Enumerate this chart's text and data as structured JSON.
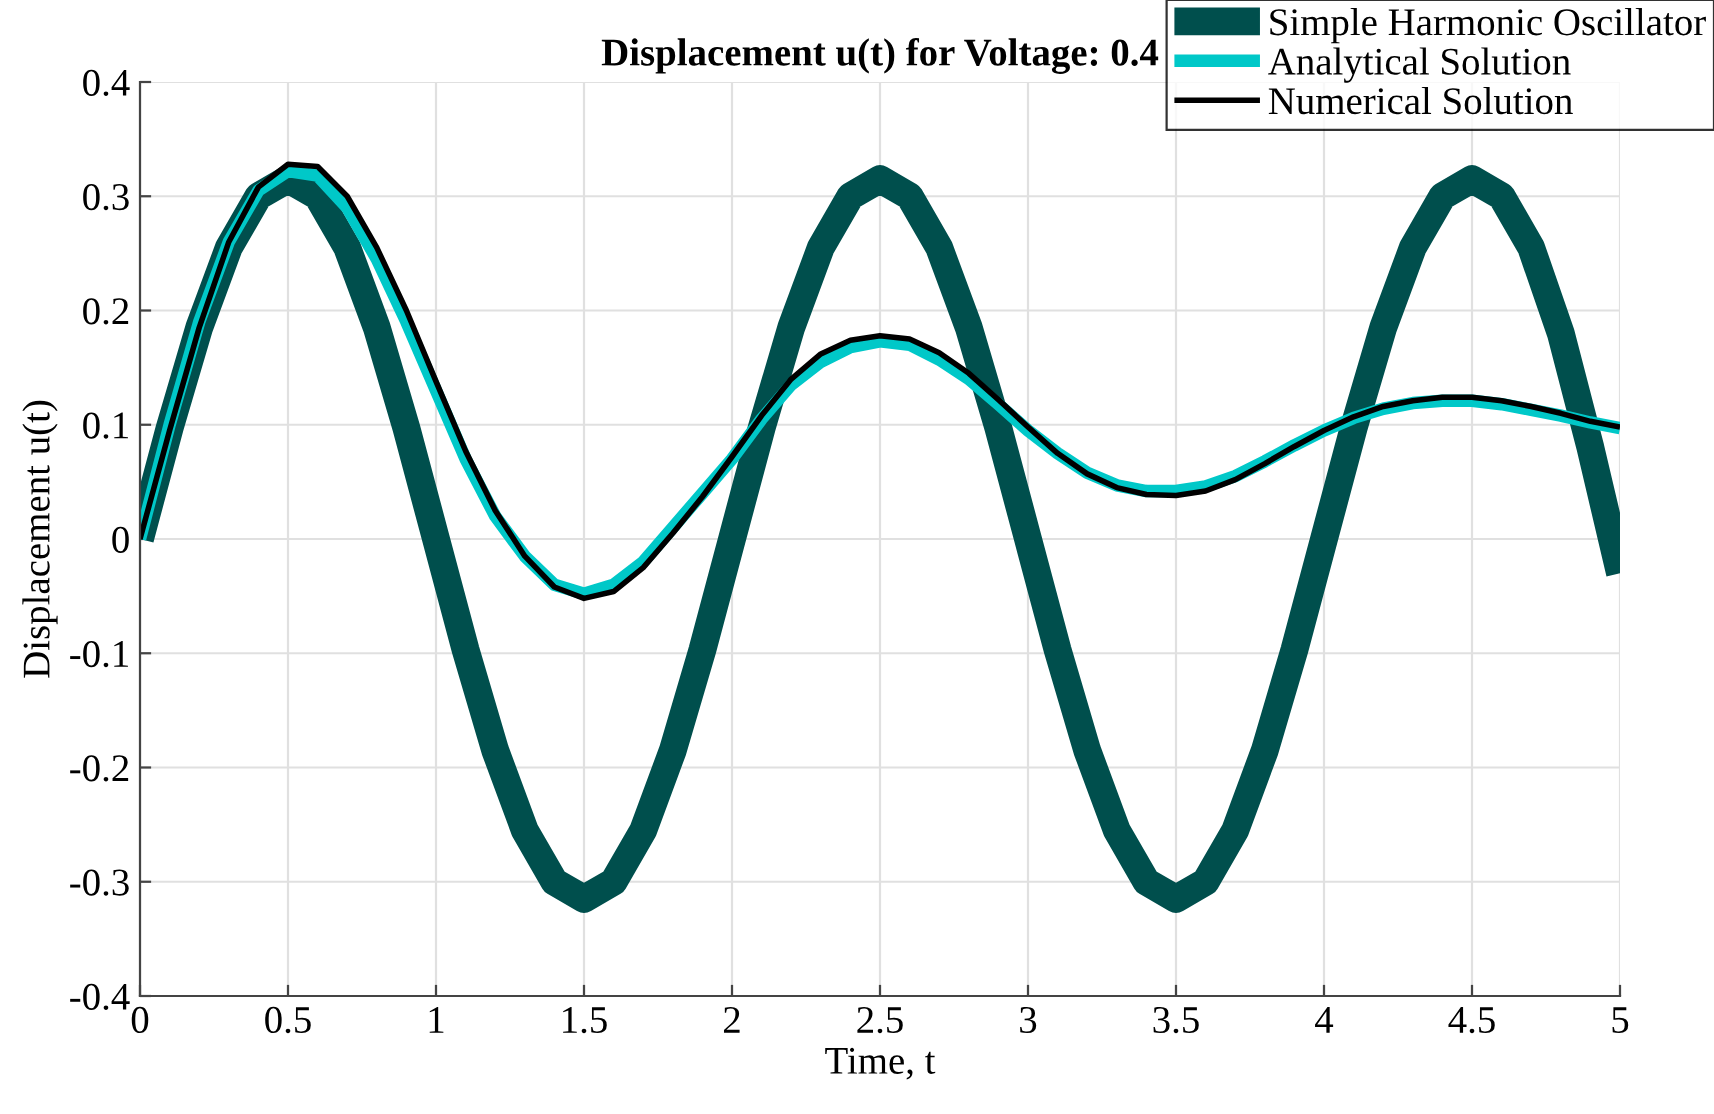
{
  "chart_data": {
    "type": "line",
    "title": "Displacement u(t) for Voltage: 0.4",
    "xlabel": "Time, t",
    "ylabel": "Displacement u(t)",
    "x": [
      0,
      0.1,
      0.2,
      0.3,
      0.4,
      0.5,
      0.6,
      0.7,
      0.8,
      0.9,
      1.0,
      1.1,
      1.2,
      1.3,
      1.4,
      1.5,
      1.6,
      1.7,
      1.8,
      1.9,
      2.0,
      2.1,
      2.2,
      2.3,
      2.4,
      2.5,
      2.6,
      2.7,
      2.8,
      2.9,
      3.0,
      3.1,
      3.2,
      3.3,
      3.4,
      3.5,
      3.6,
      3.7,
      3.8,
      3.9,
      4.0,
      4.1,
      4.2,
      4.3,
      4.4,
      4.5,
      4.6,
      4.7,
      4.8,
      4.9,
      5.0
    ],
    "series": [
      {
        "name": "Simple Harmonic Oscillator",
        "color": "#004f4d",
        "values": [
          0,
          0.097,
          0.185,
          0.255,
          0.3,
          0.315,
          0.3,
          0.255,
          0.185,
          0.097,
          0,
          -0.097,
          -0.185,
          -0.255,
          -0.3,
          -0.315,
          -0.3,
          -0.255,
          -0.185,
          -0.097,
          0,
          0.097,
          0.185,
          0.255,
          0.3,
          0.315,
          0.3,
          0.255,
          0.185,
          0.097,
          0,
          -0.097,
          -0.185,
          -0.255,
          -0.3,
          -0.315,
          -0.3,
          -0.255,
          -0.185,
          -0.097,
          0,
          0.097,
          0.185,
          0.255,
          0.3,
          0.315,
          0.3,
          0.255,
          0.18,
          0.08,
          -0.03
        ]
      },
      {
        "name": "Analytical Solution",
        "color": "#00c8c8",
        "values": [
          0,
          0.1,
          0.19,
          0.26,
          0.305,
          0.322,
          0.318,
          0.29,
          0.245,
          0.19,
          0.13,
          0.07,
          0.02,
          -0.015,
          -0.04,
          -0.048,
          -0.04,
          -0.02,
          0.01,
          0.04,
          0.07,
          0.105,
          0.135,
          0.155,
          0.168,
          0.173,
          0.17,
          0.157,
          0.14,
          0.118,
          0.095,
          0.075,
          0.058,
          0.047,
          0.042,
          0.042,
          0.046,
          0.055,
          0.068,
          0.082,
          0.095,
          0.106,
          0.114,
          0.119,
          0.121,
          0.121,
          0.118,
          0.113,
          0.108,
          0.102,
          0.097
        ]
      },
      {
        "name": "Numerical Solution",
        "color": "#000000",
        "values": [
          0,
          0.095,
          0.185,
          0.26,
          0.308,
          0.328,
          0.326,
          0.3,
          0.255,
          0.2,
          0.138,
          0.077,
          0.025,
          -0.015,
          -0.042,
          -0.052,
          -0.046,
          -0.025,
          0.005,
          0.037,
          0.072,
          0.108,
          0.14,
          0.162,
          0.174,
          0.178,
          0.175,
          0.163,
          0.145,
          0.122,
          0.098,
          0.075,
          0.057,
          0.045,
          0.039,
          0.038,
          0.042,
          0.052,
          0.066,
          0.081,
          0.095,
          0.107,
          0.116,
          0.121,
          0.124,
          0.124,
          0.121,
          0.116,
          0.11,
          0.103,
          0.098
        ]
      }
    ],
    "xlim": [
      0,
      5
    ],
    "ylim": [
      -0.4,
      0.4
    ],
    "xticks": [
      0,
      0.5,
      1,
      1.5,
      2,
      2.5,
      3,
      3.5,
      4,
      4.5,
      5
    ],
    "yticks": [
      -0.4,
      -0.3,
      -0.2,
      -0.1,
      0,
      0.1,
      0.2,
      0.3,
      0.4
    ],
    "grid": true,
    "legend": "top right"
  }
}
